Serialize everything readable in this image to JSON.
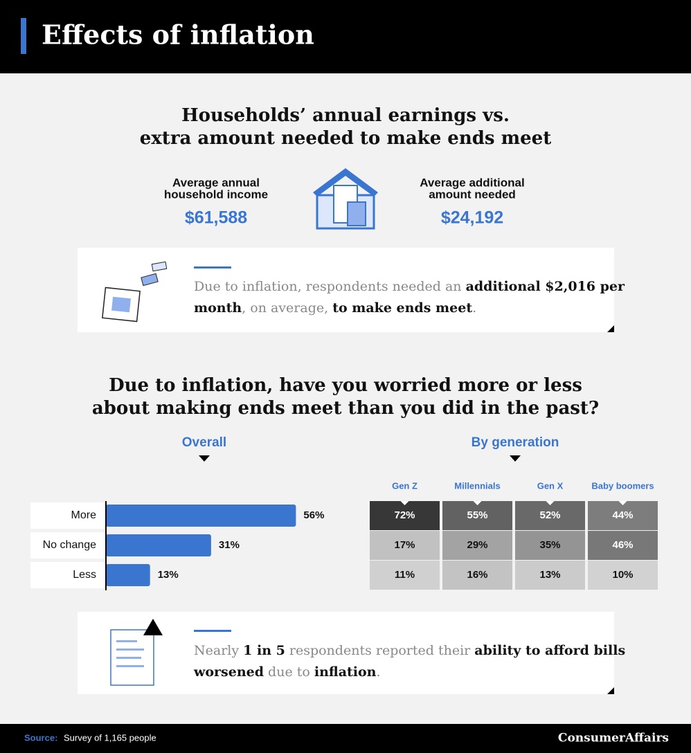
{
  "header": {
    "title": "Effects of inflation"
  },
  "summary": {
    "title_lines": [
      "Households’ annual earnings vs.",
      "extra amount needed to make ends meet"
    ],
    "left": {
      "label_lines": [
        "Average annual",
        "household income"
      ],
      "value": "$61,588"
    },
    "right": {
      "label_lines": [
        "Average additional",
        "amount needed"
      ],
      "value": "$24,192"
    }
  },
  "callout_1": {
    "lines": [
      [
        {
          "text": "Due to inflation, respondents needed an ",
          "bold": false
        },
        {
          "text": "additional $2,016 per",
          "bold": true
        }
      ],
      [
        {
          "text": "month",
          "bold": true
        },
        {
          "text": ", on average, ",
          "bold": false
        },
        {
          "text": "to make ends meet",
          "bold": true
        },
        {
          "text": ".",
          "bold": false
        }
      ]
    ]
  },
  "question": {
    "title_lines": [
      "Due to inflation, have you worried more or less",
      "about making ends meet than you did in the past?"
    ]
  },
  "chart_data": {
    "type": "bar",
    "title": "Overall",
    "categories": [
      "More",
      "No change",
      "Less"
    ],
    "values": [
      56,
      31,
      13
    ],
    "value_labels": [
      "56%",
      "31%",
      "13%"
    ],
    "color": "#3a76d0"
  },
  "generation": {
    "title": "By generation",
    "columns": [
      "Gen Z",
      "Millennials",
      "Gen X",
      "Baby boomers"
    ],
    "values": [
      [
        72,
        55,
        52,
        44
      ],
      [
        17,
        29,
        35,
        46
      ],
      [
        11,
        16,
        13,
        10
      ]
    ],
    "value_labels": [
      [
        "72%",
        "55%",
        "52%",
        "44%"
      ],
      [
        "17%",
        "29%",
        "35%",
        "46%"
      ],
      [
        "11%",
        "16%",
        "13%",
        "10%"
      ]
    ]
  },
  "callout_2": {
    "lines": [
      [
        {
          "text": "Nearly ",
          "bold": false
        },
        {
          "text": "1 in 5",
          "bold": true
        },
        {
          "text": " respondents reported their ",
          "bold": false
        },
        {
          "text": "ability to afford bills",
          "bold": true
        }
      ],
      [
        {
          "text": "worsened",
          "bold": true
        },
        {
          "text": " due to ",
          "bold": false
        },
        {
          "text": "inflation",
          "bold": true
        },
        {
          "text": ".",
          "bold": false
        }
      ]
    ]
  },
  "footer": {
    "source_label": "Source:",
    "source_text": "Survey of 1,165 people",
    "brand": "ConsumerAffairs"
  }
}
